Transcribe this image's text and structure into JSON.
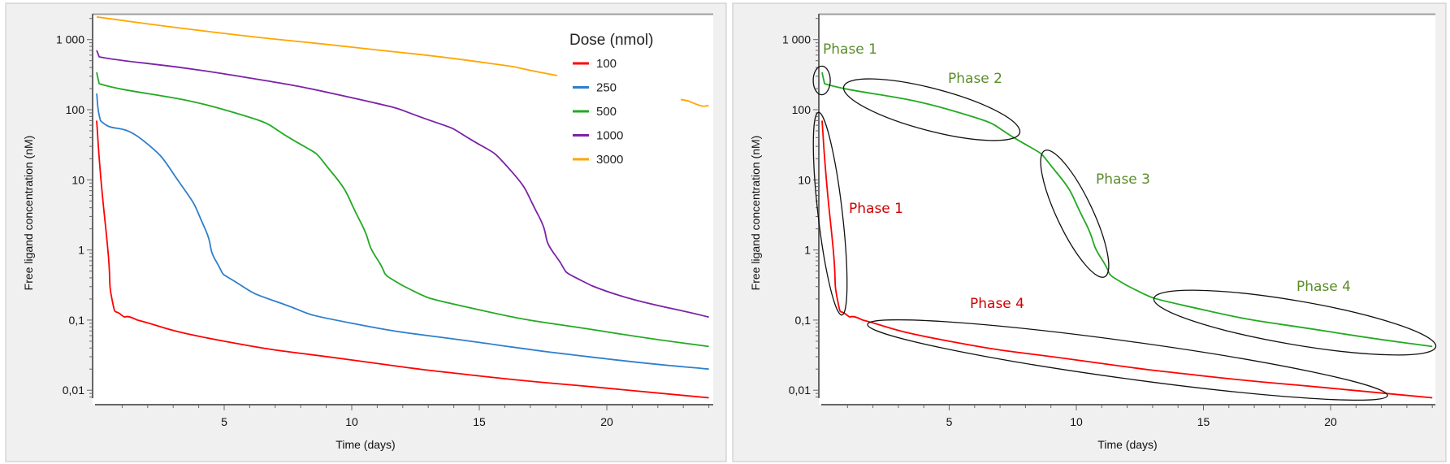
{
  "chart_data": [
    {
      "type": "line",
      "xlabel": "Time (days)",
      "ylabel": "Free ligand concentration (nM)",
      "xlim": [
        0,
        24
      ],
      "ylim": [
        0.006,
        2500
      ],
      "yscale": "log",
      "x_ticks": [
        5,
        10,
        15,
        20
      ],
      "y_ticks": [
        {
          "value": 1000,
          "label": "1 000"
        },
        {
          "value": 100,
          "label": "100"
        },
        {
          "value": 10,
          "label": "10"
        },
        {
          "value": 1,
          "label": "1"
        },
        {
          "value": 0.1,
          "label": "0,1"
        },
        {
          "value": 0.01,
          "label": "0,01"
        }
      ],
      "grid": false,
      "legend": {
        "title": "Dose (nmol)",
        "placement": "top-right"
      },
      "series": [
        {
          "name": "100",
          "color": "#ff0000",
          "points": [
            [
              0,
              70
            ],
            [
              0.17,
              10
            ],
            [
              0.44,
              1
            ],
            [
              0.6,
              0.2
            ],
            [
              0.95,
              0.12
            ],
            [
              1.6,
              0.1
            ],
            [
              5,
              0.05
            ],
            [
              10,
              0.027
            ],
            [
              15,
              0.016
            ],
            [
              20,
              0.0107
            ],
            [
              24,
              0.0078
            ]
          ]
        },
        {
          "name": "250",
          "color": "#2e7fcc",
          "points": [
            [
              0,
              170
            ],
            [
              0.15,
              70
            ],
            [
              1.8,
              37
            ],
            [
              3.3,
              8.6
            ],
            [
              4.2,
              2.2
            ],
            [
              4.7,
              0.67
            ],
            [
              5.5,
              0.34
            ],
            [
              7.3,
              0.17
            ],
            [
              10,
              0.09
            ],
            [
              15,
              0.048
            ],
            [
              20,
              0.028
            ],
            [
              24,
              0.02
            ]
          ]
        },
        {
          "name": "500",
          "color": "#22aa22",
          "points": [
            [
              0,
              340
            ],
            [
              0.1,
              235
            ],
            [
              5,
              100
            ],
            [
              7.7,
              37
            ],
            [
              9.2,
              13
            ],
            [
              10.3,
              2.7
            ],
            [
              11,
              0.74
            ],
            [
              12,
              0.31
            ],
            [
              15,
              0.14
            ],
            [
              20,
              0.068
            ],
            [
              24,
              0.042
            ]
          ]
        },
        {
          "name": "1000",
          "color": "#7b22a8",
          "points": [
            [
              0,
              700
            ],
            [
              0.1,
              567
            ],
            [
              5,
              324
            ],
            [
              10,
              148
            ],
            [
              12.9,
              74
            ],
            [
              14.7,
              37
            ],
            [
              16.2,
              14
            ],
            [
              17.3,
              3.2
            ],
            [
              18,
              0.82
            ],
            [
              19.4,
              0.31
            ],
            [
              24,
              0.11
            ]
          ]
        },
        {
          "name": "3000",
          "color": "#ffa500",
          "points": [
            [
              0,
              2100
            ],
            [
              5,
              1225
            ],
            [
              10,
              780
            ],
            [
              15,
              480
            ],
            [
              18,
              310
            ],
            [
              23.2,
              133
            ],
            [
              24,
              113
            ]
          ]
        }
      ]
    },
    {
      "type": "line",
      "xlabel": "Time (days)",
      "ylabel": "Free ligand concentration (nM)",
      "xlim": [
        0,
        24
      ],
      "ylim": [
        0.006,
        2500
      ],
      "yscale": "log",
      "x_ticks": [
        5,
        10,
        15,
        20
      ],
      "y_ticks": [
        {
          "value": 1000,
          "label": "1 000"
        },
        {
          "value": 100,
          "label": "100"
        },
        {
          "value": 10,
          "label": "10"
        },
        {
          "value": 1,
          "label": "1"
        },
        {
          "value": 0.1,
          "label": "0,1"
        },
        {
          "value": 0.01,
          "label": "0,01"
        }
      ],
      "grid": false,
      "series": [
        {
          "color": "#22aa22",
          "points": [
            [
              0,
              340
            ],
            [
              0.1,
              235
            ],
            [
              5,
              100
            ],
            [
              7.7,
              37
            ],
            [
              9.2,
              13
            ],
            [
              10.3,
              2.7
            ],
            [
              11,
              0.74
            ],
            [
              12,
              0.31
            ],
            [
              15,
              0.14
            ],
            [
              20,
              0.068
            ],
            [
              24,
              0.042
            ]
          ]
        },
        {
          "color": "#ff0000",
          "points": [
            [
              0,
              70
            ],
            [
              0.17,
              10
            ],
            [
              0.44,
              1
            ],
            [
              0.6,
              0.2
            ],
            [
              0.95,
              0.12
            ],
            [
              1.6,
              0.1
            ],
            [
              5,
              0.05
            ],
            [
              10,
              0.027
            ],
            [
              15,
              0.016
            ],
            [
              20,
              0.0107
            ],
            [
              24,
              0.0078
            ]
          ]
        }
      ],
      "annotations": [
        {
          "text": "Phase 1",
          "color": "#5b8c2a"
        },
        {
          "text": "Phase 2",
          "color": "#5b8c2a"
        },
        {
          "text": "Phase 3",
          "color": "#5b8c2a"
        },
        {
          "text": "Phase 4",
          "color": "#5b8c2a"
        },
        {
          "text": "Phase 1",
          "color": "#cc0000"
        },
        {
          "text": "Phase 4",
          "color": "#cc0000"
        }
      ]
    }
  ]
}
